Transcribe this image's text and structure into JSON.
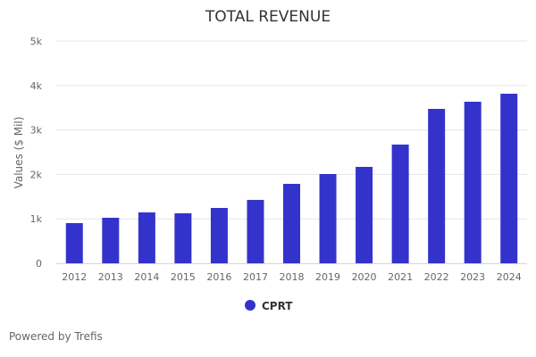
{
  "chart_data": {
    "type": "bar",
    "title": "TOTAL REVENUE",
    "xlabel": "",
    "ylabel": "Values ($ Mil)",
    "categories": [
      "2012",
      "2013",
      "2014",
      "2015",
      "2016",
      "2017",
      "2018",
      "2019",
      "2020",
      "2021",
      "2022",
      "2023",
      "2024"
    ],
    "series": [
      {
        "name": "CPRT",
        "color": "#3333cc",
        "values": [
          904,
          1024,
          1145,
          1125,
          1245,
          1426,
          1787,
          2008,
          2169,
          2671,
          3474,
          3635,
          3815
        ]
      }
    ],
    "ylim": [
      0,
      5000
    ],
    "yticks": [
      0,
      1000,
      2000,
      3000,
      4000,
      5000
    ],
    "ytick_labels": [
      "0",
      "1k",
      "2k",
      "3k",
      "4k",
      "5k"
    ],
    "grid": true,
    "legend_position": "bottom-center"
  },
  "credit": "Powered by Trefis"
}
